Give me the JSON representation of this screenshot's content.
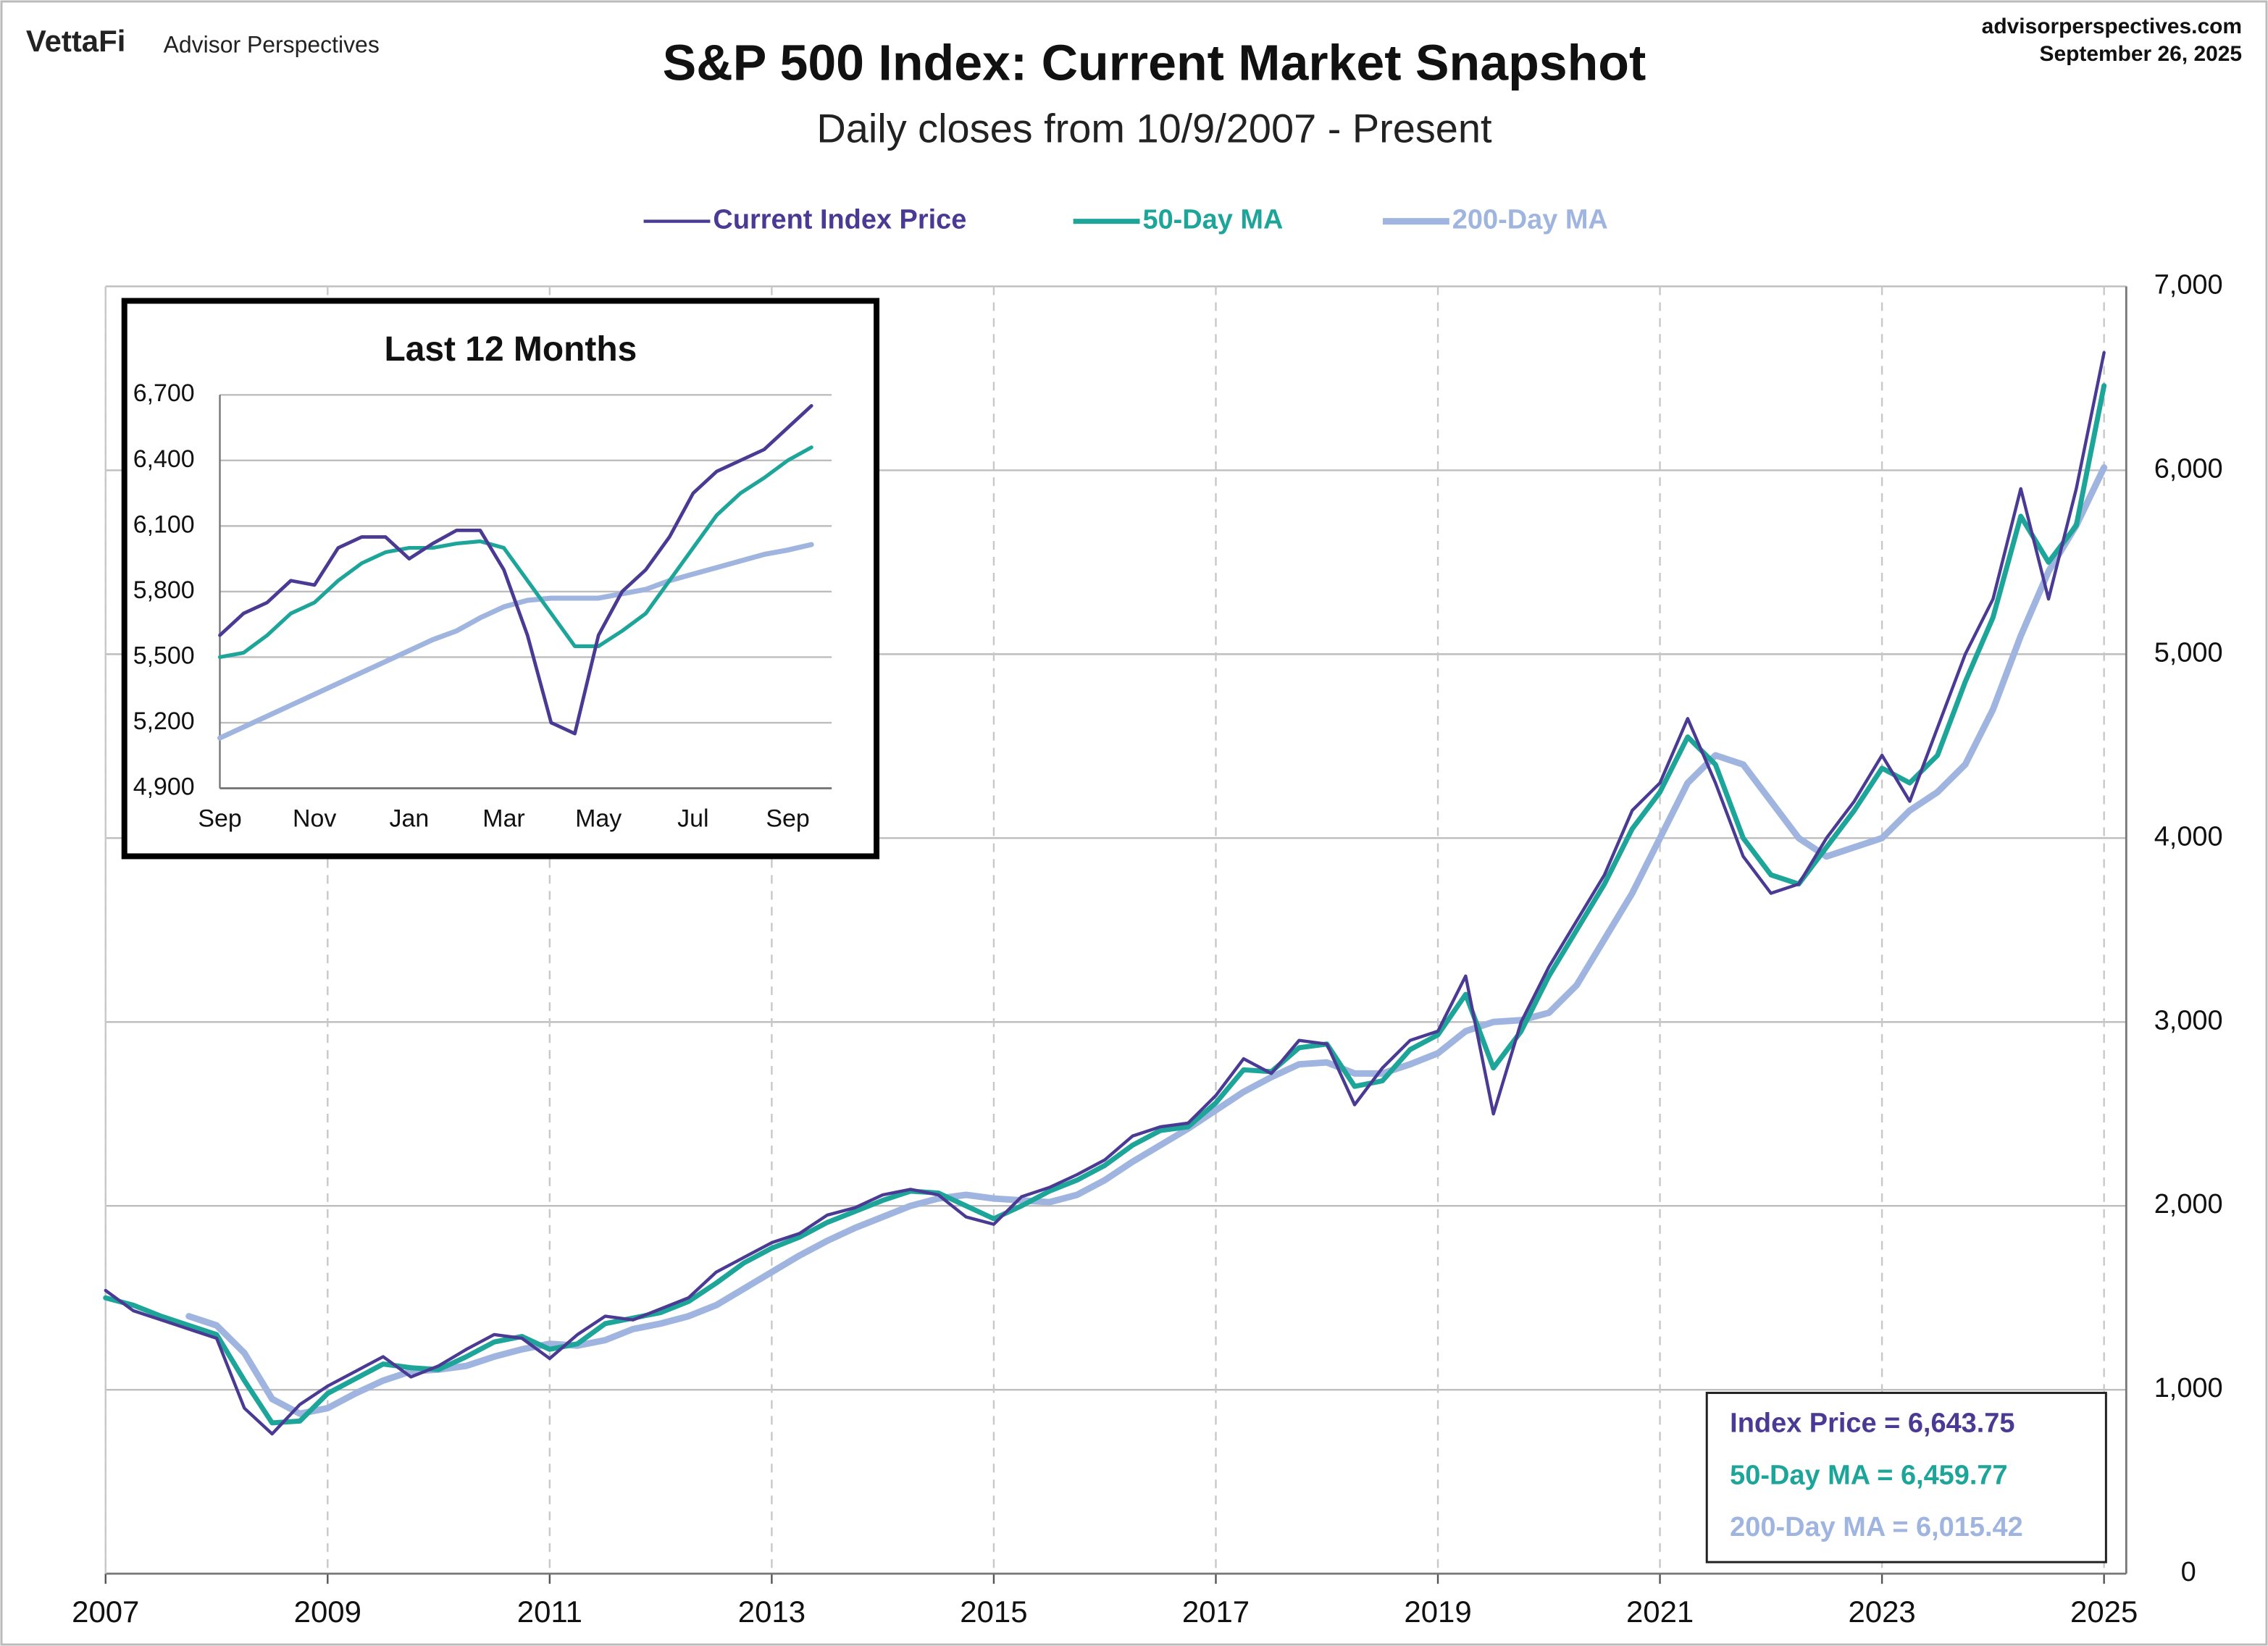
{
  "header": {
    "brand": "VettaFi",
    "brand_sub": "Advisor Perspectives",
    "site": "advisorperspectives.com",
    "date": "September 26, 2025"
  },
  "chart_data": [
    {
      "type": "line",
      "title": "S&P 500 Index: Current Market Snapshot",
      "subtitle": "Daily closes from 10/9/2007 - Present",
      "legend": "top",
      "grid": true,
      "x": [
        2007,
        2007.25,
        2007.5,
        2007.75,
        2008,
        2008.25,
        2008.5,
        2008.75,
        2009,
        2009.25,
        2009.5,
        2009.75,
        2010,
        2010.25,
        2010.5,
        2010.75,
        2011,
        2011.25,
        2011.5,
        2011.75,
        2012,
        2012.25,
        2012.5,
        2012.75,
        2013,
        2013.25,
        2013.5,
        2013.75,
        2014,
        2014.25,
        2014.5,
        2014.75,
        2015,
        2015.25,
        2015.5,
        2015.75,
        2016,
        2016.25,
        2016.5,
        2016.75,
        2017,
        2017.25,
        2017.5,
        2017.75,
        2018,
        2018.25,
        2018.5,
        2018.75,
        2019,
        2019.25,
        2019.5,
        2019.75,
        2020,
        2020.25,
        2020.5,
        2020.75,
        2021,
        2021.25,
        2021.5,
        2021.75,
        2022,
        2022.25,
        2022.5,
        2022.75,
        2023,
        2023.25,
        2023.5,
        2023.75,
        2024,
        2024.25,
        2024.5,
        2024.75,
        2025
      ],
      "xlim": [
        2007,
        2025.2
      ],
      "xticks": [
        2007,
        2009,
        2011,
        2013,
        2015,
        2017,
        2019,
        2021,
        2023,
        2025
      ],
      "ylim": [
        0,
        7000
      ],
      "yticks": [
        0,
        {
          "value": 1000,
          "label": "1,000"
        },
        {
          "value": 2000,
          "label": "2,000"
        },
        {
          "value": 3000,
          "label": "3,000"
        },
        {
          "value": 4000,
          "label": "4,000"
        },
        {
          "value": 5000,
          "label": "5,000"
        },
        {
          "value": 6000,
          "label": "6,000"
        },
        {
          "value": 7000,
          "label": "7,000"
        }
      ],
      "series": [
        {
          "name": "Current Index Price",
          "color": "#4b3a94",
          "width": 2.2,
          "values": [
            1540,
            1430,
            1380,
            1330,
            1280,
            900,
            760,
            920,
            1020,
            1100,
            1180,
            1070,
            1130,
            1220,
            1300,
            1280,
            1170,
            1300,
            1400,
            1380,
            1440,
            1500,
            1640,
            1720,
            1800,
            1850,
            1950,
            1990,
            2060,
            2090,
            2060,
            1940,
            1900,
            2050,
            2100,
            2170,
            2250,
            2380,
            2430,
            2450,
            2600,
            2800,
            2720,
            2900,
            2880,
            2550,
            2750,
            2900,
            2950,
            3250,
            2500,
            3000,
            3300,
            3550,
            3800,
            4150,
            4300,
            4650,
            4300,
            3900,
            3700,
            3750,
            4000,
            4200,
            4450,
            4200,
            4600,
            5000,
            5300,
            5900,
            5300,
            5900,
            6640
          ]
        },
        {
          "name": "50-Day MA",
          "color": "#1ea59a",
          "width": 3.5,
          "values": [
            1500,
            1460,
            1400,
            1350,
            1300,
            1050,
            820,
            830,
            980,
            1060,
            1140,
            1120,
            1110,
            1180,
            1260,
            1290,
            1220,
            1250,
            1360,
            1390,
            1420,
            1480,
            1580,
            1690,
            1770,
            1830,
            1910,
            1970,
            2030,
            2080,
            2070,
            2000,
            1930,
            2000,
            2080,
            2140,
            2220,
            2330,
            2410,
            2430,
            2560,
            2740,
            2730,
            2860,
            2880,
            2650,
            2680,
            2850,
            2930,
            3150,
            2750,
            2950,
            3250,
            3500,
            3750,
            4050,
            4250,
            4550,
            4400,
            4000,
            3800,
            3750,
            3950,
            4150,
            4380,
            4300,
            4450,
            4850,
            5200,
            5750,
            5500,
            5700,
            6460
          ]
        },
        {
          "name": "200-Day MA",
          "color": "#9fb5df",
          "width": 4.5,
          "values": [
            null,
            null,
            null,
            1400,
            1350,
            1200,
            950,
            870,
            900,
            980,
            1050,
            1100,
            1110,
            1130,
            1180,
            1220,
            1250,
            1240,
            1270,
            1330,
            1360,
            1400,
            1460,
            1550,
            1640,
            1730,
            1810,
            1880,
            1940,
            2000,
            2040,
            2060,
            2040,
            2030,
            2020,
            2060,
            2140,
            2240,
            2330,
            2420,
            2520,
            2620,
            2700,
            2770,
            2780,
            2720,
            2720,
            2770,
            2830,
            2950,
            3000,
            3010,
            3050,
            3200,
            3450,
            3700,
            4000,
            4300,
            4450,
            4400,
            4200,
            4000,
            3900,
            3950,
            4000,
            4150,
            4250,
            4400,
            4700,
            5100,
            5450,
            5700,
            6015
          ]
        }
      ],
      "annotations": [
        {
          "text": "Index Price = 6,643.75",
          "color": "#4b3a94"
        },
        {
          "text": "50-Day MA = 6,459.77",
          "color": "#1ea59a"
        },
        {
          "text": "200-Day MA = 6,015.42",
          "color": "#9fb5df"
        }
      ]
    },
    {
      "type": "line",
      "title": "Last 12 Months",
      "grid": true,
      "categories": [
        "Sep",
        null,
        null,
        null,
        "Nov",
        null,
        null,
        null,
        "Jan",
        null,
        null,
        null,
        "Mar",
        null,
        null,
        null,
        "May",
        null,
        null,
        null,
        "Jul",
        null,
        null,
        null,
        "Sep",
        null
      ],
      "ylim": [
        4900,
        6700
      ],
      "yticks": [
        {
          "value": 4900,
          "label": "4,900"
        },
        {
          "value": 5200,
          "label": "5,200"
        },
        {
          "value": 5500,
          "label": "5,500"
        },
        {
          "value": 5800,
          "label": "5,800"
        },
        {
          "value": 6100,
          "label": "6,100"
        },
        {
          "value": 6400,
          "label": "6,400"
        },
        {
          "value": 6700,
          "label": "6,700"
        }
      ],
      "series": [
        {
          "name": "Current Index Price",
          "color": "#4b3a94",
          "width": 2.4,
          "values": [
            5600,
            5700,
            5750,
            5850,
            5830,
            6000,
            6050,
            6050,
            5950,
            6020,
            6080,
            6080,
            5900,
            5600,
            5200,
            5150,
            5600,
            5800,
            5900,
            6050,
            6250,
            6350,
            6400,
            6450,
            6550,
            6650
          ]
        },
        {
          "name": "50-Day MA",
          "color": "#1ea59a",
          "width": 2.6,
          "values": [
            5500,
            5520,
            5600,
            5700,
            5750,
            5850,
            5930,
            5980,
            6000,
            6000,
            6020,
            6030,
            6000,
            5850,
            5700,
            5550,
            5550,
            5620,
            5700,
            5850,
            6000,
            6150,
            6250,
            6320,
            6400,
            6460
          ]
        },
        {
          "name": "200-Day MA",
          "color": "#9fb5df",
          "width": 3.5,
          "values": [
            5130,
            5180,
            5230,
            5280,
            5330,
            5380,
            5430,
            5480,
            5530,
            5580,
            5620,
            5680,
            5730,
            5760,
            5770,
            5770,
            5770,
            5790,
            5810,
            5850,
            5880,
            5910,
            5940,
            5970,
            5990,
            6015
          ]
        }
      ]
    }
  ]
}
